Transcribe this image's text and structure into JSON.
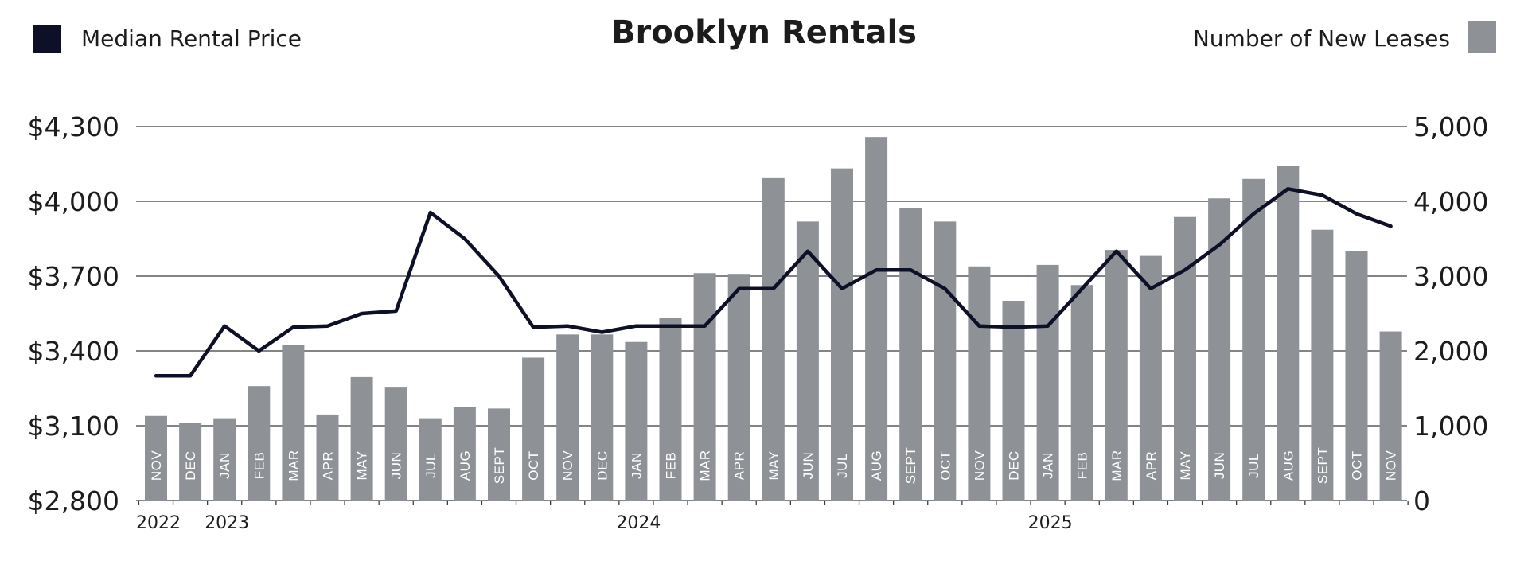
{
  "chart_data": {
    "type": "bar",
    "title": "Brooklyn Rentals",
    "legend": {
      "line_label": "Median Rental Price",
      "bar_label": "Number of New Leases",
      "placement": "top"
    },
    "colors": {
      "line": "#0d1026",
      "bars": "#8e9297",
      "month_text": "#ffffff"
    },
    "categories": [
      "NOV",
      "DEC",
      "JAN",
      "FEB",
      "MAR",
      "APR",
      "MAY",
      "JUN",
      "JUL",
      "AUG",
      "SEPT",
      "OCT",
      "NOV",
      "DEC",
      "JAN",
      "FEB",
      "MAR",
      "APR",
      "MAY",
      "JUN",
      "JUL",
      "AUG",
      "SEPT",
      "OCT",
      "NOV",
      "DEC",
      "JAN",
      "FEB",
      "MAR",
      "APR",
      "MAY",
      "JUN",
      "JUL",
      "AUG",
      "SEPT",
      "OCT",
      "NOV"
    ],
    "years": [
      {
        "label": "2022",
        "index": 0
      },
      {
        "label": "2023",
        "index": 2
      },
      {
        "label": "2024",
        "index": 14
      },
      {
        "label": "2025",
        "index": 26
      }
    ],
    "y_left": {
      "min": 2800,
      "max": 4300,
      "ticks": [
        "$4,300",
        "$4,000",
        "$3,700",
        "$3,400",
        "$3,100",
        "$2,800"
      ],
      "tick_values": [
        4300,
        4000,
        3700,
        3400,
        3100,
        2800
      ]
    },
    "y_right": {
      "min": 0,
      "max": 5000,
      "ticks": [
        "5,000",
        "4,000",
        "3,000",
        "2,000",
        "1,000",
        "0"
      ],
      "tick_values": [
        5000,
        4000,
        3000,
        2000,
        1000,
        0
      ]
    },
    "grid": true,
    "series": [
      {
        "name": "Median Rental Price",
        "type": "line",
        "axis": "left",
        "values": [
          3300,
          3300,
          3500,
          3400,
          3495,
          3500,
          3550,
          3560,
          3955,
          3850,
          3700,
          3495,
          3500,
          3475,
          3500,
          3500,
          3500,
          3650,
          3650,
          3800,
          3650,
          3725,
          3725,
          3650,
          3500,
          3495,
          3500,
          3650,
          3800,
          3650,
          3725,
          3825,
          3950,
          4050,
          4025,
          3950,
          3900
        ]
      },
      {
        "name": "Number of New Leases",
        "type": "bar",
        "axis": "right",
        "values": [
          1130,
          1040,
          1100,
          1530,
          2080,
          1150,
          1650,
          1520,
          1100,
          1250,
          1230,
          1910,
          2220,
          2220,
          2120,
          2440,
          3040,
          3030,
          4310,
          3730,
          4440,
          4860,
          3910,
          3730,
          3130,
          2670,
          3150,
          2880,
          3350,
          3270,
          3790,
          4040,
          4300,
          4470,
          3620,
          3340,
          2260
        ]
      }
    ]
  }
}
